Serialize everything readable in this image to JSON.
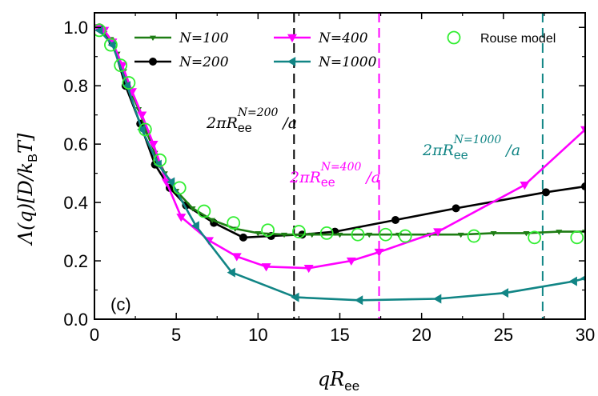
{
  "chart_data": {
    "type": "line",
    "title": "",
    "panel_label": "(c)",
    "xlabel": "qR_ee",
    "ylabel": "Λ(q)[D/k_BT]",
    "xlim": [
      0,
      30
    ],
    "ylim": [
      0,
      1.05
    ],
    "xticks": [
      0,
      5,
      10,
      15,
      20,
      25,
      30
    ],
    "yticks": [
      0.0,
      0.2,
      0.4,
      0.6,
      0.8,
      1.0
    ],
    "xtick_labels": [
      "0",
      "5",
      "10",
      "15",
      "20",
      "25",
      "30"
    ],
    "ytick_labels": [
      "0.0",
      "0.2",
      "0.4",
      "0.6",
      "0.8",
      "1.0"
    ],
    "grid": false,
    "legend_position": "top",
    "series": [
      {
        "name": "N=100",
        "color": "#1e7d14",
        "marker": "tri-down-thin",
        "x": [
          0.3,
          0.6,
          1.0,
          1.4,
          1.8,
          2.2,
          2.7,
          3.2,
          3.7,
          4.3,
          5.0,
          6.0,
          7.2,
          8.6,
          10.0,
          11.6,
          13.3,
          15.0,
          16.8,
          18.6,
          20.5,
          22.4,
          24.4,
          26.4,
          28.4,
          30.0
        ],
        "y": [
          0.99,
          0.98,
          0.96,
          0.91,
          0.85,
          0.78,
          0.72,
          0.64,
          0.57,
          0.5,
          0.44,
          0.38,
          0.34,
          0.31,
          0.295,
          0.29,
          0.29,
          0.29,
          0.29,
          0.29,
          0.29,
          0.29,
          0.295,
          0.295,
          0.3,
          0.3
        ]
      },
      {
        "name": "N=200",
        "color": "#000000",
        "marker": "circle",
        "x": [
          0.3,
          1.1,
          1.9,
          2.8,
          3.7,
          4.6,
          5.6,
          7.3,
          9.1,
          10.8,
          12.7,
          14.7,
          18.4,
          22.1,
          27.6,
          30.0
        ],
        "y": [
          1.0,
          0.95,
          0.8,
          0.67,
          0.53,
          0.45,
          0.39,
          0.33,
          0.28,
          0.285,
          0.29,
          0.3,
          0.34,
          0.38,
          0.435,
          0.455
        ]
      },
      {
        "name": "N=400",
        "color": "#ff00ff",
        "marker": "tri-down",
        "x": [
          0.2,
          0.6,
          1.1,
          1.7,
          2.3,
          2.9,
          3.6,
          4.4,
          5.3,
          7.0,
          8.7,
          10.5,
          13.1,
          15.7,
          17.4,
          21.0,
          26.3,
          30.0
        ],
        "y": [
          1.0,
          0.99,
          0.95,
          0.87,
          0.78,
          0.7,
          0.6,
          0.47,
          0.35,
          0.27,
          0.215,
          0.18,
          0.175,
          0.2,
          0.23,
          0.3,
          0.46,
          0.65
        ]
      },
      {
        "name": "N=1000",
        "color": "#118585",
        "marker": "tri-left",
        "x": [
          0.3,
          1.1,
          2.0,
          2.9,
          3.9,
          4.7,
          6.2,
          8.4,
          12.3,
          16.2,
          21.0,
          25.1,
          29.3,
          30.0
        ],
        "y": [
          0.99,
          0.94,
          0.8,
          0.65,
          0.53,
          0.47,
          0.32,
          0.16,
          0.075,
          0.065,
          0.07,
          0.09,
          0.13,
          0.14
        ]
      },
      {
        "name": "Rouse model",
        "color": "#33ee33",
        "marker": "open-circle",
        "line": false,
        "x": [
          0.3,
          1.0,
          1.6,
          2.1,
          3.1,
          4.0,
          5.2,
          6.7,
          8.5,
          10.6,
          12.5,
          14.2,
          16.1,
          17.8,
          19.0,
          23.2,
          26.9,
          29.5
        ],
        "y": [
          0.99,
          0.94,
          0.87,
          0.81,
          0.65,
          0.545,
          0.45,
          0.37,
          0.33,
          0.305,
          0.3,
          0.295,
          0.29,
          0.29,
          0.285,
          0.285,
          0.28,
          0.28
        ]
      }
    ],
    "vlines": [
      {
        "x": 12.2,
        "color": "#000000",
        "label_main": "2πR",
        "label_sub": "ee",
        "label_sup": "N=200",
        "label_tail": "/a"
      },
      {
        "x": 17.4,
        "color": "#ff00ff",
        "label_main": "2πR",
        "label_sub": "ee",
        "label_sup": "N=400",
        "label_tail": "/a"
      },
      {
        "x": 27.4,
        "color": "#118585",
        "label_main": "2πR",
        "label_sub": "ee",
        "label_sup": "N=1000",
        "label_tail": "/a"
      }
    ]
  }
}
